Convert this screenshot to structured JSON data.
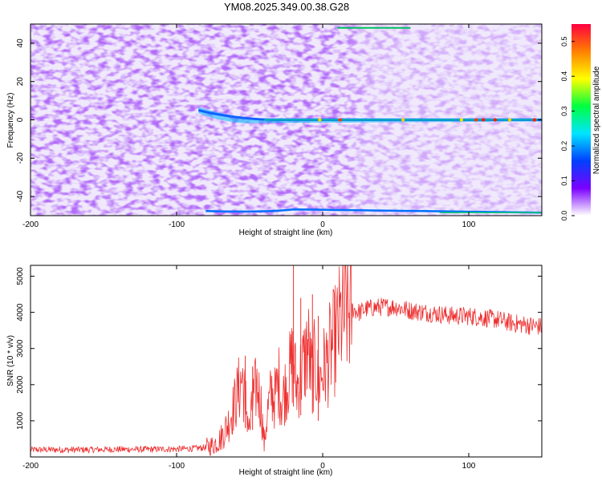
{
  "title": "YM08.2025.349.00.38.G28",
  "chart_data": [
    {
      "type": "heatmap",
      "xlabel": "Height of straight line (km)",
      "ylabel": "Frequency (Hz)",
      "xlim": [
        -200,
        150
      ],
      "ylim": [
        -50,
        50
      ],
      "x_ticks": [
        -200,
        -100,
        0,
        100
      ],
      "y_ticks": [
        -40,
        -20,
        0,
        20,
        40
      ],
      "colorbar": {
        "label": "Normalized spectral amplitude",
        "range": [
          0,
          0.55
        ],
        "ticks": [
          0.0,
          0.1,
          0.2,
          0.3,
          0.4,
          0.5
        ],
        "colors": [
          "#ffffff",
          "#7b00ff",
          "#0040ff",
          "#00e5ff",
          "#00ff40",
          "#ffff00",
          "#ff8000",
          "#ff0040"
        ]
      },
      "features": {
        "carrier_line_frequency_hz": 0,
        "carrier_line_start_km": -85,
        "edge_lines_hz": [
          48,
          -48
        ]
      }
    },
    {
      "type": "line",
      "xlabel": "Height of straight line (km)",
      "ylabel": "SNR (10 * v/v)",
      "xlim": [
        -200,
        150
      ],
      "ylim": [
        0,
        5300
      ],
      "x_ticks": [
        -200,
        -100,
        0,
        100
      ],
      "y_ticks": [
        1000,
        2000,
        3000,
        4000,
        5000
      ],
      "line_color": "#ee3030",
      "series": [
        {
          "x": [
            -200,
            -180,
            -160,
            -140,
            -120,
            -100,
            -90,
            -80,
            -75,
            -70,
            -65,
            -60,
            -55,
            -52,
            -50,
            -48,
            -45,
            -42,
            -40,
            -38,
            -35,
            -33,
            -30,
            -28,
            -25,
            -22,
            -20,
            -18,
            -15,
            -12,
            -10,
            -8,
            -5,
            -3,
            0,
            3,
            5,
            8,
            10,
            12,
            15,
            18,
            20,
            25,
            30,
            40,
            50,
            60,
            70,
            80,
            90,
            100,
            110,
            120,
            130,
            140,
            150
          ],
          "y": [
            200,
            200,
            200,
            210,
            210,
            220,
            230,
            260,
            330,
            500,
            900,
            1500,
            2200,
            1300,
            700,
            1500,
            2000,
            1400,
            300,
            1200,
            1800,
            1600,
            2100,
            1500,
            2000,
            2400,
            2800,
            1900,
            2300,
            2700,
            3100,
            2300,
            2600,
            2000,
            2400,
            2600,
            2900,
            3200,
            3400,
            3700,
            3900,
            4000,
            4100,
            4000,
            4100,
            4150,
            4150,
            4050,
            4000,
            3950,
            3900,
            3900,
            3850,
            3800,
            3700,
            3650,
            3600
          ]
        }
      ],
      "peaks": [
        {
          "x": -53,
          "y": 2800
        },
        {
          "x": -48,
          "y": 2500
        },
        {
          "x": -20,
          "y": 5300
        },
        {
          "x": -15,
          "y": 4400
        },
        {
          "x": -7,
          "y": 4500
        },
        {
          "x": -3,
          "y": 3900
        }
      ]
    }
  ]
}
